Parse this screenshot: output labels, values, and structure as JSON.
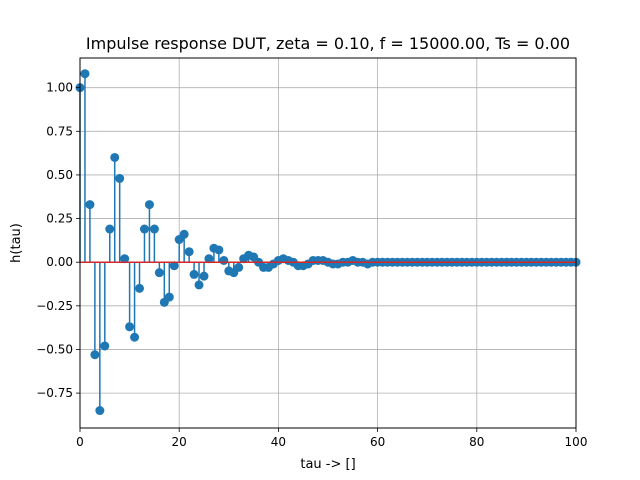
{
  "chart_data": {
    "type": "stem",
    "title": "Impulse response DUT, zeta = 0.10, f = 15000.00, Ts = 0.00",
    "xlabel": "tau -> []",
    "ylabel": "h(tau)",
    "xlim": [
      0,
      100
    ],
    "ylim": [
      -0.95,
      1.17
    ],
    "x_ticks": [
      0,
      20,
      40,
      60,
      80,
      100
    ],
    "x_tick_labels": [
      "0",
      "20",
      "40",
      "60",
      "80",
      "100"
    ],
    "y_ticks": [
      -0.75,
      -0.5,
      -0.25,
      0.0,
      0.25,
      0.5,
      0.75,
      1.0
    ],
    "y_tick_labels": [
      "−0.75",
      "−0.50",
      "−0.25",
      "0.00",
      "0.25",
      "0.50",
      "0.75",
      "1.00"
    ],
    "grid": true,
    "baseline": 0,
    "colors": {
      "stem": "#1f77b4",
      "baseline": "#d62728",
      "grid": "#b0b0b0"
    },
    "x": [
      0,
      1,
      2,
      3,
      4,
      5,
      6,
      7,
      8,
      9,
      10,
      11,
      12,
      13,
      14,
      15,
      16,
      17,
      18,
      19,
      20,
      21,
      22,
      23,
      24,
      25,
      26,
      27,
      28,
      29,
      30,
      31,
      32,
      33,
      34,
      35,
      36,
      37,
      38,
      39,
      40,
      41,
      42,
      43,
      44,
      45,
      46,
      47,
      48,
      49,
      50,
      51,
      52,
      53,
      54,
      55,
      56,
      57,
      58,
      59,
      60,
      61,
      62,
      63,
      64,
      65,
      66,
      67,
      68,
      69,
      70,
      71,
      72,
      73,
      74,
      75,
      76,
      77,
      78,
      79,
      80,
      81,
      82,
      83,
      84,
      85,
      86,
      87,
      88,
      89,
      90,
      91,
      92,
      93,
      94,
      95,
      96,
      97,
      98,
      99,
      100
    ],
    "values": [
      1.0,
      1.08,
      0.33,
      -0.53,
      -0.85,
      -0.48,
      0.19,
      0.6,
      0.48,
      0.02,
      -0.37,
      -0.43,
      -0.15,
      0.19,
      0.33,
      0.19,
      -0.06,
      -0.23,
      -0.2,
      -0.02,
      0.13,
      0.16,
      0.06,
      -0.07,
      -0.13,
      -0.08,
      0.02,
      0.08,
      0.07,
      0.01,
      -0.05,
      -0.06,
      -0.03,
      0.02,
      0.04,
      0.03,
      0.0,
      -0.03,
      -0.03,
      -0.01,
      0.01,
      0.02,
      0.01,
      0.0,
      -0.02,
      -0.02,
      -0.01,
      0.01,
      0.01,
      0.01,
      0.0,
      -0.01,
      -0.01,
      0.0,
      0.0,
      0.01,
      0.0,
      0.0,
      -0.01,
      0.0,
      0.0,
      0.0,
      0.0,
      0.0,
      0.0,
      0.0,
      0.0,
      0.0,
      0.0,
      0.0,
      0.0,
      0.0,
      0.0,
      0.0,
      0.0,
      0.0,
      0.0,
      0.0,
      0.0,
      0.0,
      0.0,
      0.0,
      0.0,
      0.0,
      0.0,
      0.0,
      0.0,
      0.0,
      0.0,
      0.0,
      0.0,
      0.0,
      0.0,
      0.0,
      0.0,
      0.0,
      0.0,
      0.0,
      0.0,
      0.0,
      0.0
    ]
  }
}
